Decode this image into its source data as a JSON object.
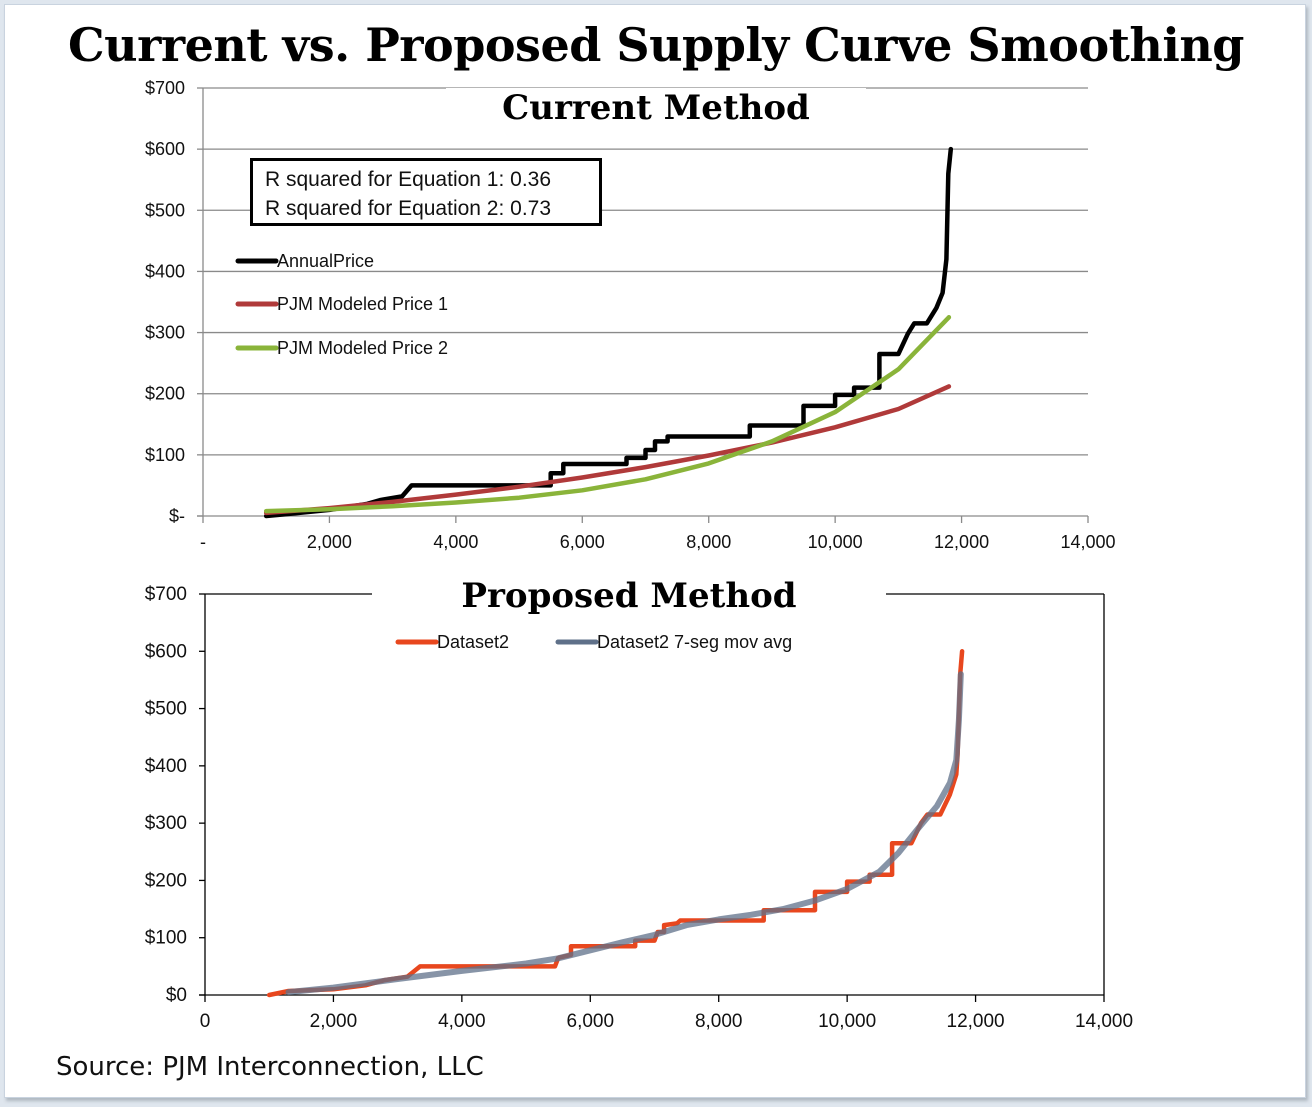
{
  "title": "Current vs. Proposed Supply Curve Smoothing",
  "source": "Source: PJM Interconnection, LLC",
  "chart_data": [
    {
      "type": "line",
      "title": "Current Method",
      "xlabel": "",
      "ylabel": "",
      "xlim": [
        0,
        14000
      ],
      "ylim": [
        0,
        700
      ],
      "x_ticks": [
        "-",
        "2,000",
        "4,000",
        "6,000",
        "8,000",
        "10,000",
        "12,000",
        "14,000"
      ],
      "x_tick_values": [
        0,
        2000,
        4000,
        6000,
        8000,
        10000,
        12000,
        14000
      ],
      "y_ticks": [
        "$-",
        "$100",
        "$200",
        "$300",
        "$400",
        "$500",
        "$600",
        "$700"
      ],
      "y_tick_values": [
        0,
        100,
        200,
        300,
        400,
        500,
        600,
        700
      ],
      "grid": "horizontal",
      "legend_position": "left",
      "annotation": [
        "R squared for Equation 1: 0.36",
        "R squared for Equation 2: 0.73"
      ],
      "series": [
        {
          "name": "AnnualPrice",
          "color": "#000000",
          "step": true,
          "points": [
            [
              1000,
              0
            ],
            [
              1300,
              3
            ],
            [
              2000,
              10
            ],
            [
              2600,
              20
            ],
            [
              2800,
              26
            ],
            [
              3150,
              32
            ],
            [
              3300,
              50
            ],
            [
              5500,
              50
            ],
            [
              5500,
              70
            ],
            [
              5700,
              70
            ],
            [
              5700,
              85
            ],
            [
              6700,
              85
            ],
            [
              6700,
              95
            ],
            [
              7000,
              95
            ],
            [
              7000,
              108
            ],
            [
              7150,
              108
            ],
            [
              7150,
              122
            ],
            [
              7350,
              122
            ],
            [
              7350,
              130
            ],
            [
              8650,
              130
            ],
            [
              8650,
              148
            ],
            [
              9500,
              148
            ],
            [
              9500,
              180
            ],
            [
              10000,
              180
            ],
            [
              10000,
              198
            ],
            [
              10300,
              198
            ],
            [
              10300,
              210
            ],
            [
              10700,
              210
            ],
            [
              10700,
              265
            ],
            [
              11000,
              265
            ],
            [
              11150,
              298
            ],
            [
              11250,
              315
            ],
            [
              11450,
              315
            ],
            [
              11600,
              340
            ],
            [
              11700,
              365
            ],
            [
              11760,
              420
            ],
            [
              11790,
              560
            ],
            [
              11830,
              600
            ]
          ]
        },
        {
          "name": "PJM Modeled Price 1",
          "color": "#b03a3a",
          "points": [
            [
              1000,
              5
            ],
            [
              2000,
              13
            ],
            [
              3000,
              23
            ],
            [
              4000,
              35
            ],
            [
              5000,
              48
            ],
            [
              6000,
              63
            ],
            [
              7000,
              80
            ],
            [
              8000,
              99
            ],
            [
              9000,
              120
            ],
            [
              10000,
              145
            ],
            [
              11000,
              175
            ],
            [
              11800,
              212
            ]
          ]
        },
        {
          "name": "PJM Modeled Price 2",
          "color": "#8ab43a",
          "points": [
            [
              1000,
              8
            ],
            [
              2000,
              11
            ],
            [
              3000,
              16
            ],
            [
              4000,
              22
            ],
            [
              5000,
              30
            ],
            [
              6000,
              42
            ],
            [
              7000,
              60
            ],
            [
              8000,
              86
            ],
            [
              9000,
              122
            ],
            [
              10000,
              170
            ],
            [
              11000,
              240
            ],
            [
              11800,
              325
            ]
          ]
        }
      ]
    },
    {
      "type": "line",
      "title": "Proposed Method",
      "xlabel": "",
      "ylabel": "",
      "xlim": [
        0,
        14000
      ],
      "ylim": [
        0,
        700
      ],
      "x_ticks": [
        "0",
        "2,000",
        "4,000",
        "6,000",
        "8,000",
        "10,000",
        "12,000",
        "14,000"
      ],
      "x_tick_values": [
        0,
        2000,
        4000,
        6000,
        8000,
        10000,
        12000,
        14000
      ],
      "y_ticks": [
        "$0",
        "$100",
        "$200",
        "$300",
        "$400",
        "$500",
        "$600",
        "$700"
      ],
      "y_tick_values": [
        0,
        100,
        200,
        300,
        400,
        500,
        600,
        700
      ],
      "grid": "none",
      "legend_position": "top",
      "series": [
        {
          "name": "Dataset2",
          "color": "#e8471e",
          "step": true,
          "points": [
            [
              1000,
              0
            ],
            [
              1300,
              7
            ],
            [
              2000,
              10
            ],
            [
              2500,
              17
            ],
            [
              2800,
              26
            ],
            [
              3150,
              32
            ],
            [
              3350,
              50
            ],
            [
              5450,
              50
            ],
            [
              5500,
              65
            ],
            [
              5700,
              70
            ],
            [
              5700,
              85
            ],
            [
              6700,
              85
            ],
            [
              6700,
              95
            ],
            [
              7000,
              95
            ],
            [
              7050,
              110
            ],
            [
              7150,
              110
            ],
            [
              7150,
              122
            ],
            [
              7350,
              125
            ],
            [
              7400,
              130
            ],
            [
              8700,
              130
            ],
            [
              8700,
              148
            ],
            [
              9500,
              148
            ],
            [
              9500,
              180
            ],
            [
              10000,
              180
            ],
            [
              10000,
              198
            ],
            [
              10350,
              198
            ],
            [
              10350,
              210
            ],
            [
              10700,
              210
            ],
            [
              10700,
              265
            ],
            [
              11000,
              265
            ],
            [
              11150,
              300
            ],
            [
              11250,
              315
            ],
            [
              11450,
              315
            ],
            [
              11600,
              350
            ],
            [
              11700,
              385
            ],
            [
              11720,
              420
            ],
            [
              11760,
              560
            ],
            [
              11790,
              600
            ]
          ]
        },
        {
          "name": "Dataset2 7-seg mov avg",
          "color": "#5f7089",
          "points": [
            [
              1300,
              5
            ],
            [
              2000,
              13
            ],
            [
              3000,
              28
            ],
            [
              4000,
              42
            ],
            [
              5000,
              55
            ],
            [
              5500,
              64
            ],
            [
              6000,
              78
            ],
            [
              6500,
              92
            ],
            [
              7000,
              105
            ],
            [
              7500,
              122
            ],
            [
              8000,
              132
            ],
            [
              8500,
              140
            ],
            [
              9000,
              150
            ],
            [
              9500,
              165
            ],
            [
              10000,
              185
            ],
            [
              10500,
              215
            ],
            [
              10800,
              248
            ],
            [
              11100,
              290
            ],
            [
              11400,
              330
            ],
            [
              11600,
              370
            ],
            [
              11700,
              410
            ],
            [
              11740,
              480
            ],
            [
              11770,
              560
            ]
          ]
        }
      ]
    }
  ]
}
